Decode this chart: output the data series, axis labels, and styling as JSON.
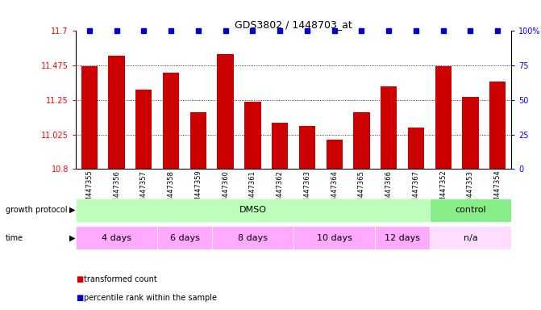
{
  "title": "GDS3802 / 1448703_at",
  "samples": [
    "GSM447355",
    "GSM447356",
    "GSM447357",
    "GSM447358",
    "GSM447359",
    "GSM447360",
    "GSM447361",
    "GSM447362",
    "GSM447363",
    "GSM447364",
    "GSM447365",
    "GSM447366",
    "GSM447367",
    "GSM447352",
    "GSM447353",
    "GSM447354"
  ],
  "transformed_counts": [
    11.47,
    11.54,
    11.32,
    11.43,
    11.17,
    11.55,
    11.24,
    11.1,
    11.08,
    10.99,
    11.17,
    11.34,
    11.07,
    11.47,
    11.27,
    11.37
  ],
  "ymin": 10.8,
  "ymax": 11.7,
  "yticks": [
    10.8,
    11.025,
    11.25,
    11.475,
    11.7
  ],
  "ytick_labels": [
    "10.8",
    "11.025",
    "11.25",
    "11.475",
    "11.7"
  ],
  "right_yticks": [
    0,
    25,
    50,
    75,
    100
  ],
  "right_ytick_labels": [
    "0",
    "25",
    "50",
    "75",
    "100%"
  ],
  "bar_color": "#cc0000",
  "dot_color": "#0000cc",
  "growth_protocol_label": "growth protocol",
  "growth_protocol_groups": [
    {
      "label": "DMSO",
      "start": 0,
      "end": 13,
      "color": "#bbffbb"
    },
    {
      "label": "control",
      "start": 13,
      "end": 16,
      "color": "#88ee88"
    }
  ],
  "time_label": "time",
  "time_groups": [
    {
      "label": "4 days",
      "start": 0,
      "end": 3,
      "color": "#ffaaff"
    },
    {
      "label": "6 days",
      "start": 3,
      "end": 5,
      "color": "#ffaaff"
    },
    {
      "label": "8 days",
      "start": 5,
      "end": 8,
      "color": "#ffaaff"
    },
    {
      "label": "10 days",
      "start": 8,
      "end": 11,
      "color": "#ffaaff"
    },
    {
      "label": "12 days",
      "start": 11,
      "end": 13,
      "color": "#ffaaff"
    },
    {
      "label": "n/a",
      "start": 13,
      "end": 16,
      "color": "#ffddff"
    }
  ],
  "legend_red_label": "transformed count",
  "legend_blue_label": "percentile rank within the sample"
}
